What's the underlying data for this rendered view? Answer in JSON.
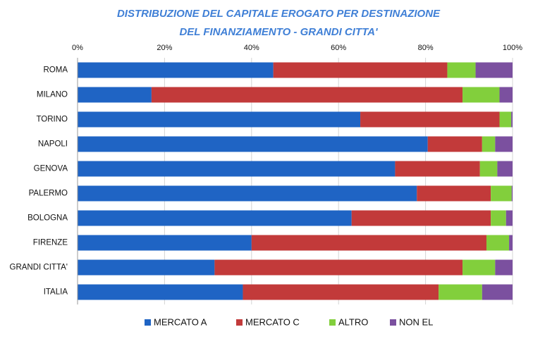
{
  "chart_data": {
    "type": "stacked-bar-horizontal",
    "title": [
      "DISTRIBUZIONE DEL CAPITALE EROGATO PER DESTINAZIONE",
      "DEL FINANZIAMENTO - GRANDI CITTA'"
    ],
    "categories": [
      "ROMA",
      "MILANO",
      "TORINO",
      "NAPOLI",
      "GENOVA",
      "PALERMO",
      "BOLOGNA",
      "FIRENZE",
      "GRANDI CITTA'",
      "ITALIA"
    ],
    "series": [
      {
        "name": "MERCATO A",
        "color": "#1f64c4",
        "values": [
          45,
          17,
          65,
          80.5,
          73,
          78,
          63,
          40,
          31.5,
          38
        ]
      },
      {
        "name": "MERCATO C",
        "color": "#c23a3a",
        "values": [
          40,
          71.5,
          32,
          12.5,
          19.5,
          17,
          32,
          54,
          57,
          45
        ]
      },
      {
        "name": "ALTRO",
        "color": "#82cf3c",
        "values": [
          6.5,
          8.5,
          2.7,
          3,
          4,
          4.8,
          3.5,
          5.2,
          7.5,
          10
        ]
      },
      {
        "name": "NON EL",
        "color": "#7b509f",
        "values": [
          8.5,
          3,
          0.3,
          4,
          3.5,
          0.2,
          1.5,
          0.8,
          4,
          7
        ]
      }
    ],
    "xlim": [
      0,
      100
    ],
    "xticks": [
      {
        "value": 0,
        "label": "0%"
      },
      {
        "value": 20,
        "label": "20%"
      },
      {
        "value": 40,
        "label": "40%"
      },
      {
        "value": 60,
        "label": "60%"
      },
      {
        "value": 80,
        "label": "80%"
      },
      {
        "value": 100,
        "label": "100%"
      }
    ],
    "grid": true,
    "legend": "bottom"
  }
}
